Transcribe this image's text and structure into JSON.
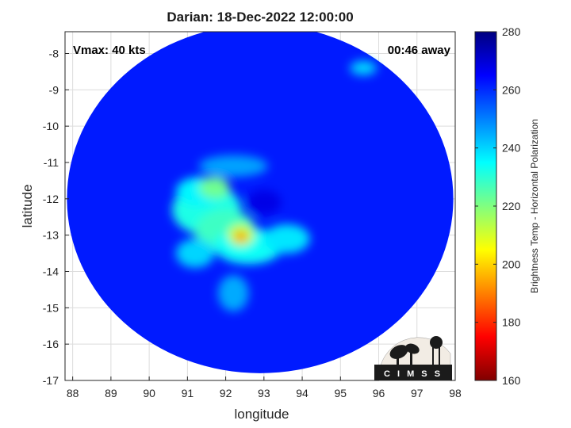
{
  "title": "Darian: 18-Dec-2022 12:00:00",
  "overlays": {
    "vmax": "Vmax: 40 kts",
    "away": "00:46 away"
  },
  "logo": {
    "text": "C I M S S"
  },
  "chart_data": {
    "type": "heatmap",
    "xlabel": "longitude",
    "ylabel": "latitude",
    "xlim": [
      87.8,
      98.0
    ],
    "ylim": [
      -17.0,
      -7.4
    ],
    "xticks": [
      88,
      89,
      90,
      91,
      92,
      93,
      94,
      95,
      96,
      97,
      98
    ],
    "yticks": [
      -8,
      -9,
      -10,
      -11,
      -12,
      -13,
      -14,
      -15,
      -16,
      -17
    ],
    "grid": true,
    "swath": {
      "center_lon": 92.9,
      "center_lat": -12.0,
      "radius_lon": 5.05,
      "radius_lat": 4.8
    },
    "colorbar": {
      "label": "Brightness Temp - Horizontal Polarization",
      "range": [
        160,
        280
      ],
      "ticks": [
        280,
        260,
        240,
        220,
        200,
        180,
        160
      ],
      "colors": [
        "#800000",
        "#ff0000",
        "#ff8000",
        "#ffff00",
        "#80ff80",
        "#00ffff",
        "#0080ff",
        "#0000ff",
        "#000080"
      ]
    },
    "background_value": 262,
    "features": [
      {
        "lon": 91.5,
        "lat": -12.3,
        "rx": 0.9,
        "ry": 0.7,
        "value": 232
      },
      {
        "lon": 92.0,
        "lat": -12.9,
        "rx": 0.8,
        "ry": 0.6,
        "value": 228
      },
      {
        "lon": 91.3,
        "lat": -11.8,
        "rx": 0.6,
        "ry": 0.4,
        "value": 236
      },
      {
        "lon": 92.6,
        "lat": -13.3,
        "rx": 0.9,
        "ry": 0.5,
        "value": 234
      },
      {
        "lon": 93.6,
        "lat": -13.1,
        "rx": 0.6,
        "ry": 0.4,
        "value": 238
      },
      {
        "lon": 92.4,
        "lat": -13.0,
        "rx": 0.35,
        "ry": 0.3,
        "value": 212
      },
      {
        "lon": 92.4,
        "lat": -13.05,
        "rx": 0.15,
        "ry": 0.15,
        "value": 192
      },
      {
        "lon": 91.7,
        "lat": -11.7,
        "rx": 0.4,
        "ry": 0.3,
        "value": 222
      },
      {
        "lon": 91.2,
        "lat": -13.5,
        "rx": 0.5,
        "ry": 0.4,
        "value": 240
      },
      {
        "lon": 92.2,
        "lat": -14.6,
        "rx": 0.4,
        "ry": 0.5,
        "value": 245
      },
      {
        "lon": 92.2,
        "lat": -11.1,
        "rx": 0.9,
        "ry": 0.3,
        "value": 246
      },
      {
        "lon": 95.6,
        "lat": -8.4,
        "rx": 0.35,
        "ry": 0.2,
        "value": 240
      },
      {
        "lon": 93.0,
        "lat": -12.1,
        "rx": 0.45,
        "ry": 0.35,
        "value": 268
      }
    ]
  }
}
